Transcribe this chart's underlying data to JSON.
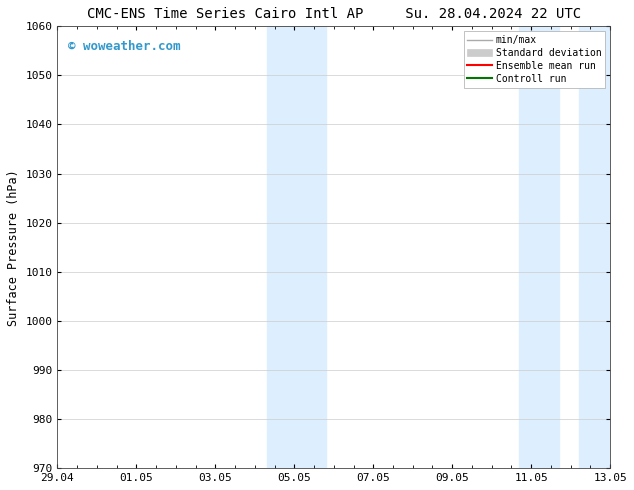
{
  "title": "CMC-ENS Time Series Cairo Intl AP     Su. 28.04.2024 22 UTC",
  "ylabel": "Surface Pressure (hPa)",
  "ylim": [
    970,
    1060
  ],
  "yticks": [
    970,
    980,
    990,
    1000,
    1010,
    1020,
    1030,
    1040,
    1050,
    1060
  ],
  "x_tick_labels": [
    "29.04",
    "01.05",
    "03.05",
    "05.05",
    "07.05",
    "09.05",
    "11.05",
    "13.05"
  ],
  "x_tick_positions": [
    0,
    2,
    4,
    6,
    8,
    10,
    12,
    14
  ],
  "xlim": [
    0,
    14
  ],
  "shaded_bands": [
    {
      "xmin": 5.3,
      "xmax": 6.8
    },
    {
      "xmin": 11.7,
      "xmax": 12.7
    },
    {
      "xmin": 13.2,
      "xmax": 14.0
    }
  ],
  "shaded_color": "#ddeeff",
  "background_color": "#ffffff",
  "watermark_text": "© woweather.com",
  "watermark_color": "#3399cc",
  "legend_items": [
    {
      "label": "min/max",
      "color": "#aaaaaa",
      "style": "line_with_caps"
    },
    {
      "label": "Standard deviation",
      "color": "#cccccc",
      "style": "filled_rect"
    },
    {
      "label": "Ensemble mean run",
      "color": "#ff0000",
      "style": "line"
    },
    {
      "label": "Controll run",
      "color": "#007700",
      "style": "line"
    }
  ],
  "grid_color": "#cccccc",
  "title_fontsize": 10,
  "label_fontsize": 8.5,
  "tick_fontsize": 8,
  "watermark_fontsize": 9,
  "legend_fontsize": 7
}
